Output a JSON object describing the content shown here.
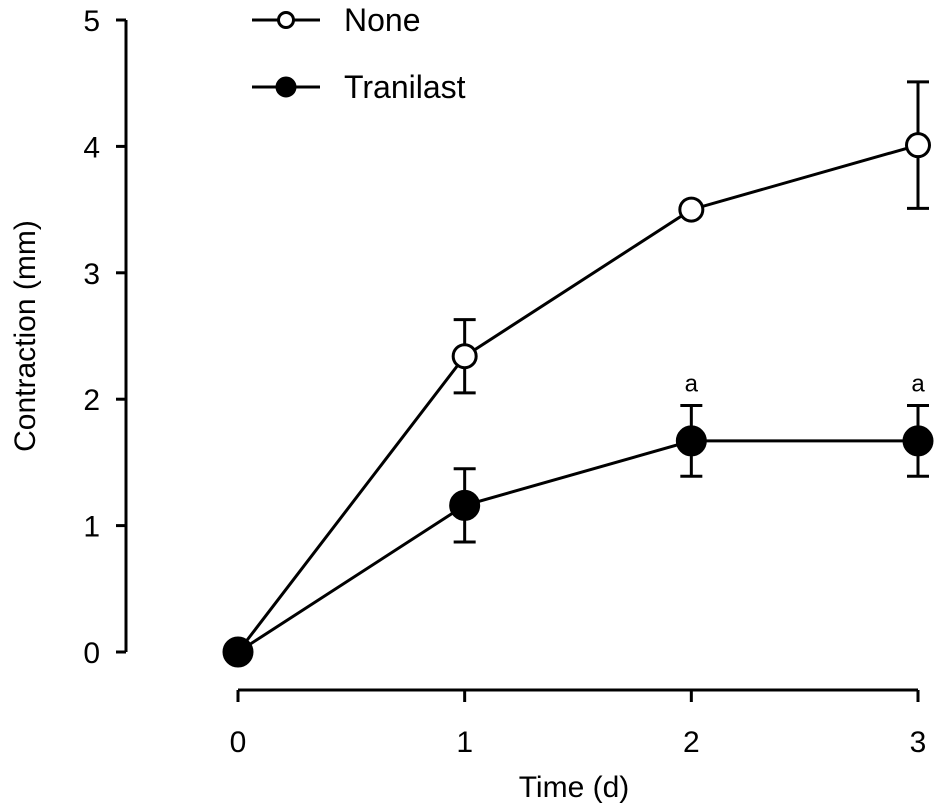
{
  "chart_data": {
    "type": "line",
    "xlabel": "Time (d)",
    "ylabel": "Contraction (mm)",
    "xlim": [
      0,
      3
    ],
    "ylim": [
      0,
      5
    ],
    "x_ticks": [
      "0",
      "1",
      "2",
      "3"
    ],
    "y_ticks": [
      "0",
      "1",
      "2",
      "3",
      "4",
      "5"
    ],
    "grid": false,
    "legend_position": "top-left",
    "series": [
      {
        "name": "None",
        "marker": "open-circle",
        "x": [
          0,
          1,
          2,
          3
        ],
        "y": [
          0,
          2.34,
          3.5,
          4.01
        ],
        "error": [
          0,
          0.29,
          0,
          0.5
        ]
      },
      {
        "name": "Tranilast",
        "marker": "filled-circle",
        "x": [
          0,
          1,
          2,
          3
        ],
        "y": [
          0,
          1.16,
          1.67,
          1.67
        ],
        "error": [
          0,
          0.29,
          0.28,
          0.28
        ]
      }
    ],
    "annotations": [
      {
        "text": "a",
        "x": 2,
        "y": 1.95
      },
      {
        "text": "a",
        "x": 3,
        "y": 1.95
      }
    ]
  }
}
